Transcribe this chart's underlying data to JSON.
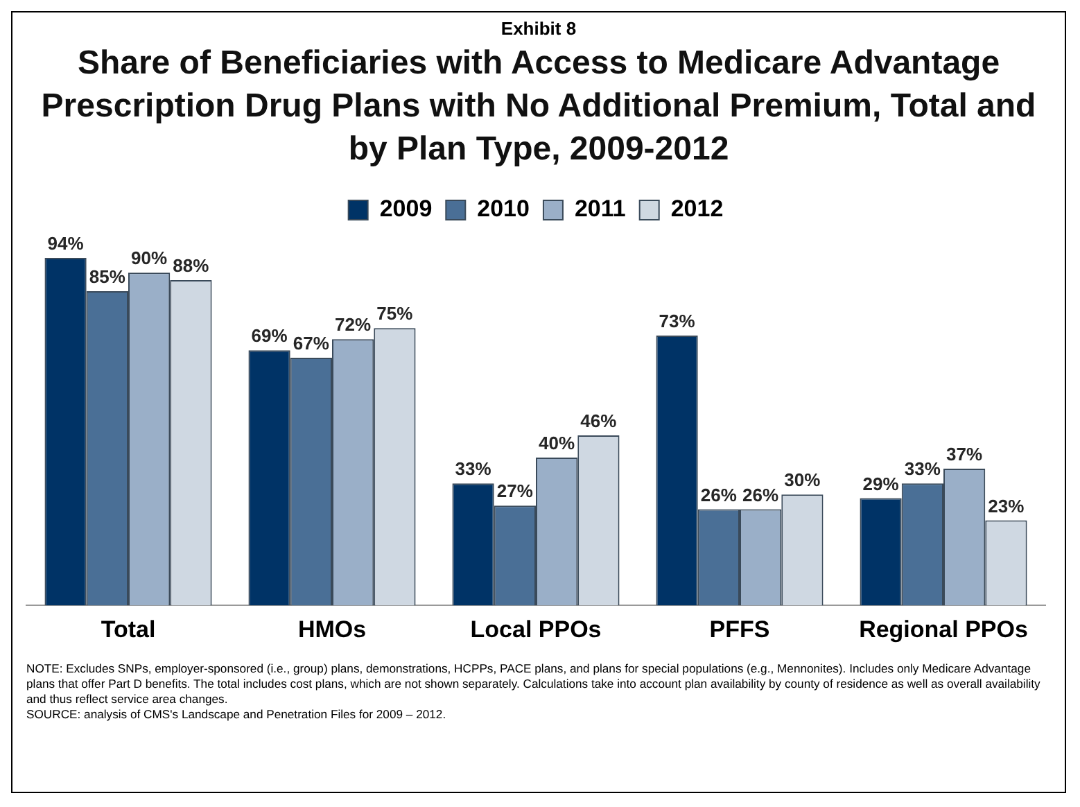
{
  "chart_data": {
    "type": "bar",
    "subtitle": "Exhibit 8",
    "title": "Share of Beneficiaries with Access to Medicare Advantage Prescription Drug Plans with No Additional Premium, Total and by Plan Type, 2009-2012",
    "categories": [
      "Total",
      "HMOs",
      "Local PPOs",
      "PFFS",
      "Regional PPOs"
    ],
    "series": [
      {
        "name": "2009",
        "color": "#003366",
        "values": [
          94,
          69,
          33,
          73,
          29
        ],
        "value_labels": [
          "94%",
          "69%",
          "33%",
          "73%",
          "29%"
        ]
      },
      {
        "name": "2010",
        "color": "#4a6f96",
        "values": [
          85,
          67,
          27,
          26,
          33
        ],
        "value_labels": [
          "85%",
          "67%",
          "27%",
          "26%",
          "33%"
        ]
      },
      {
        "name": "2011",
        "color": "#9aafc8",
        "values": [
          90,
          72,
          40,
          26,
          37
        ],
        "value_labels": [
          "90%",
          "72%",
          "40%",
          "26%",
          "37%"
        ]
      },
      {
        "name": "2012",
        "color": "#cfd8e2",
        "values": [
          88,
          75,
          46,
          30,
          23
        ],
        "value_labels": [
          "88%",
          "75%",
          "46%",
          "30%",
          "23%"
        ]
      }
    ],
    "legend": "top",
    "tick_labels": "x",
    "grid": false,
    "annotations": [
      "NOTE: Excludes SNPs, employer-sponsored (i.e., group) plans, demonstrations, HCPPs, PACE plans, and plans for special populations (e.g., Mennonites).  Includes only Medicare Advantage plans that offer Part D benefits. The total includes cost plans, which are not shown separately. Calculations take into account plan availability by county of residence as well as overall availability and thus reflect service area changes.",
      "SOURCE: analysis of CMS's Landscape and Penetration Files for 2009 – 2012."
    ]
  }
}
